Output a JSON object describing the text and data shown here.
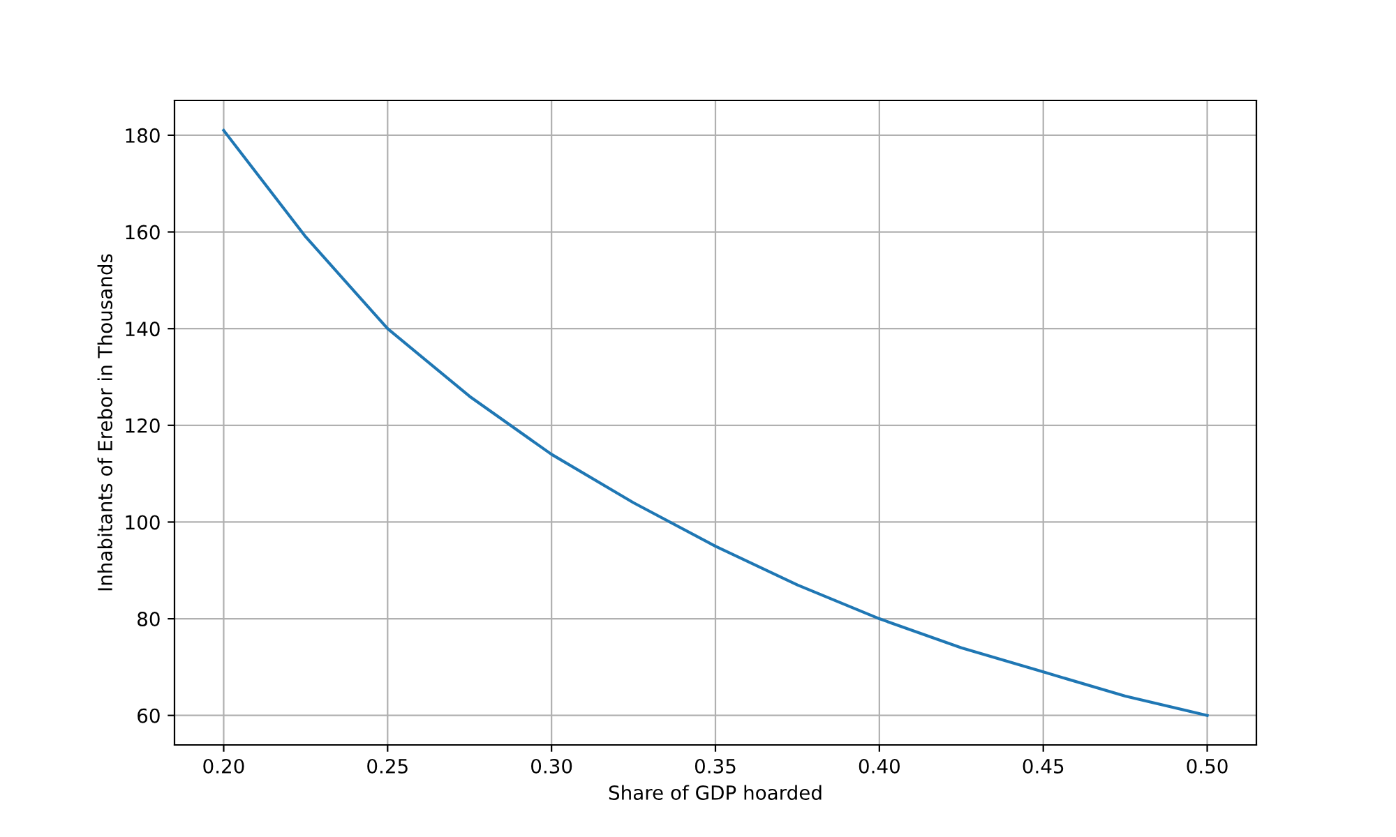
{
  "chart_data": {
    "type": "line",
    "xlabel": "Share of GDP hoarded",
    "ylabel": "Inhabitants of Erebor in Thousands",
    "x": [
      0.2,
      0.225,
      0.25,
      0.275,
      0.3,
      0.325,
      0.35,
      0.375,
      0.4,
      0.425,
      0.45,
      0.475,
      0.5
    ],
    "series": [
      {
        "color": "#1f77b4",
        "values": [
          181,
          159,
          140,
          126,
          114,
          104,
          95,
          87,
          80,
          74,
          69,
          64,
          60
        ]
      }
    ],
    "xlim": [
      0.185,
      0.515
    ],
    "ylim": [
      53.9,
      187.2
    ],
    "xticks": [
      {
        "value": 0.2,
        "label": "0.20"
      },
      {
        "value": 0.25,
        "label": "0.25"
      },
      {
        "value": 0.3,
        "label": "0.30"
      },
      {
        "value": 0.35,
        "label": "0.35"
      },
      {
        "value": 0.4,
        "label": "0.40"
      },
      {
        "value": 0.45,
        "label": "0.45"
      },
      {
        "value": 0.5,
        "label": "0.50"
      }
    ],
    "yticks": [
      60,
      80,
      100,
      120,
      140,
      160,
      180
    ],
    "grid": true,
    "marker": "none",
    "line_style": "solid"
  }
}
